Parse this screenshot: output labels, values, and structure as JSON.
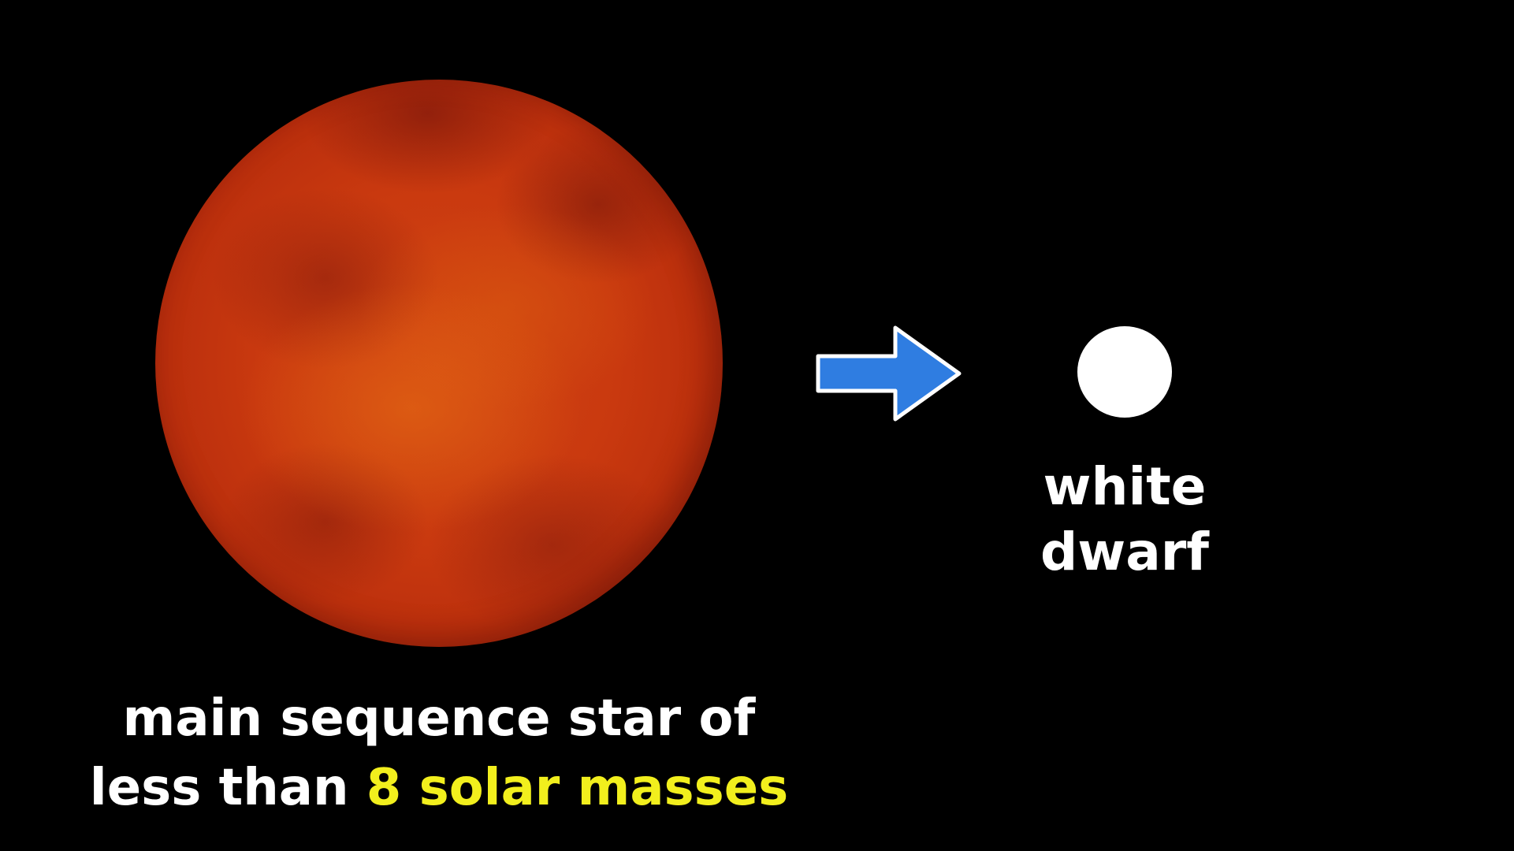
{
  "diagram": {
    "star": {
      "caption_line1": "main sequence star of",
      "caption_line2_prefix": "less than ",
      "caption_line2_highlight": "8 solar masses",
      "color": "#c9390f",
      "highlight_color": "#f2ef1d"
    },
    "arrow": {
      "icon": "right-arrow-icon",
      "color": "#2f7de1"
    },
    "remnant": {
      "label_line1": "white",
      "label_line2": "dwarf",
      "color": "#ffffff"
    }
  }
}
